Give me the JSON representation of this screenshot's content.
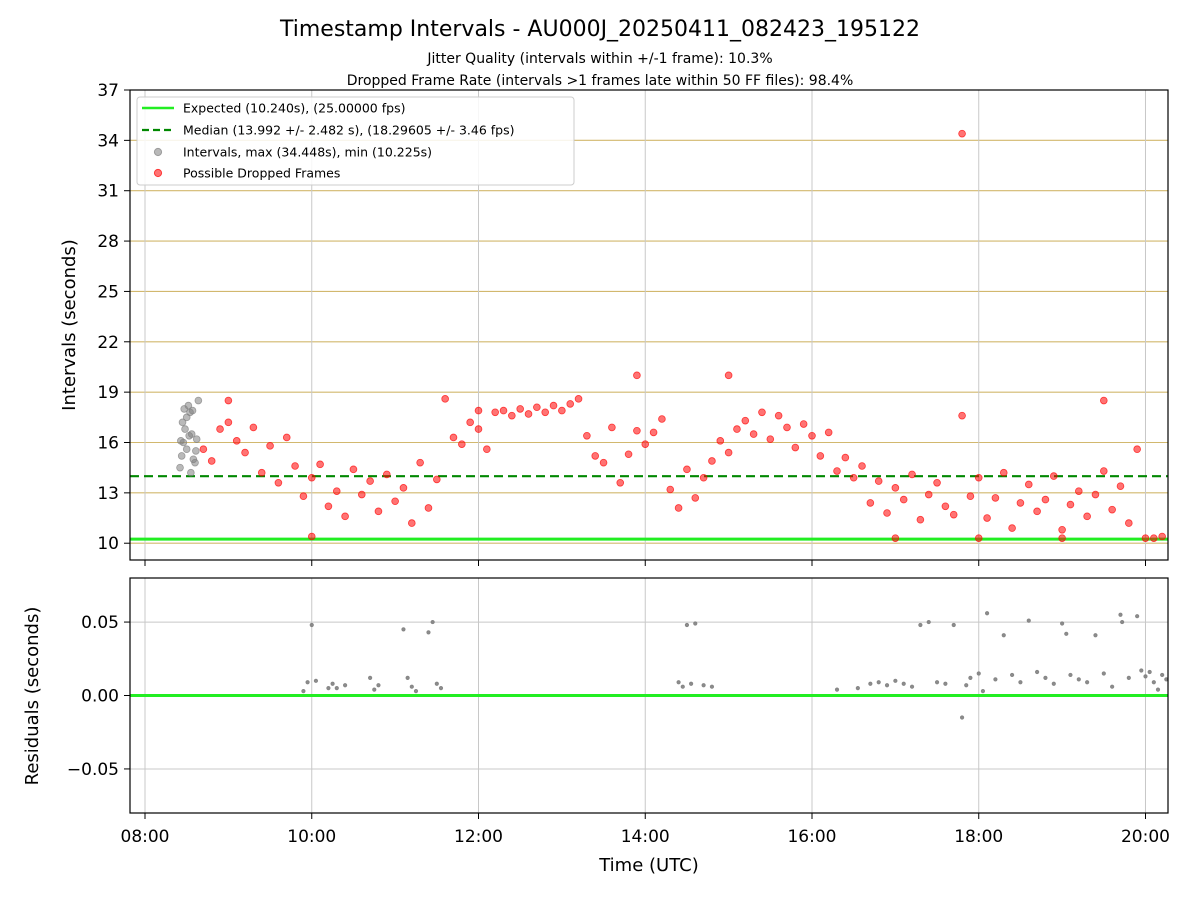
{
  "chart_data": {
    "title": "Timestamp Intervals - AU000J_20250411_082423_195122",
    "subtitle_lines": [
      "Jitter Quality (intervals within +/-1 frame): 10.3%",
      "Dropped Frame Rate (intervals >1 frames late within 50 FF files): 98.4%"
    ],
    "xlabel": "Time (UTC)",
    "x_ticks": [
      "08:00",
      "10:00",
      "12:00",
      "14:00",
      "16:00",
      "18:00",
      "20:00"
    ],
    "x_tick_hours": [
      8,
      10,
      12,
      14,
      16,
      18,
      20
    ],
    "xlim_hours": [
      7.82,
      20.27
    ],
    "colors": {
      "expected": "#22ee22",
      "median": "#008800",
      "intervals": "#808080",
      "dropped": "#ff0000",
      "hgrid_upper": "#d2b86e",
      "grid": "#c8c8c8"
    },
    "panels": [
      {
        "name": "intervals",
        "type": "scatter",
        "ylabel": "Intervals (seconds)",
        "ylim": [
          9.0,
          37.0
        ],
        "y_ticks": [
          "10",
          "13",
          "16",
          "19",
          "22",
          "25",
          "28",
          "31",
          "34",
          "37"
        ],
        "y_tick_values": [
          10,
          13,
          16,
          19,
          22,
          25,
          28,
          31,
          34,
          37
        ],
        "expected_value": 10.24,
        "median_value": 13.992,
        "legend": [
          {
            "label": "Expected (10.240s), (25.00000 fps)",
            "style": "solid-line",
            "color": "#22ee22"
          },
          {
            "label": "Median (13.992 +/- 2.482 s), (18.29605 +/- 3.46 fps)",
            "style": "dashed-line",
            "color": "#008800"
          },
          {
            "label": "Intervals, max (34.448s), min (10.225s)",
            "style": "dot",
            "color": "#808080"
          },
          {
            "label": "Possible Dropped Frames",
            "style": "dot",
            "color": "#ff0000"
          }
        ],
        "series": [
          {
            "name": "Intervals",
            "color": "#808080",
            "points": [
              [
                8.42,
                14.5
              ],
              [
                8.44,
                15.2
              ],
              [
                8.46,
                16.0
              ],
              [
                8.48,
                16.8
              ],
              [
                8.5,
                17.5
              ],
              [
                8.52,
                18.2
              ],
              [
                8.54,
                17.8
              ],
              [
                8.56,
                16.5
              ],
              [
                8.58,
                15.0
              ],
              [
                8.6,
                14.8
              ],
              [
                8.62,
                16.2
              ],
              [
                8.64,
                18.5
              ],
              [
                8.45,
                17.2
              ],
              [
                8.5,
                15.6
              ],
              [
                8.55,
                14.2
              ],
              [
                8.47,
                18.0
              ],
              [
                8.53,
                16.4
              ],
              [
                8.57,
                17.9
              ],
              [
                8.43,
                16.1
              ],
              [
                8.61,
                15.5
              ]
            ]
          },
          {
            "name": "Possible Dropped Frames",
            "color": "#ff0000",
            "points": [
              [
                8.7,
                15.6
              ],
              [
                8.8,
                14.9
              ],
              [
                8.9,
                16.8
              ],
              [
                9.0,
                17.2
              ],
              [
                9.1,
                16.1
              ],
              [
                9.2,
                15.4
              ],
              [
                9.3,
                16.9
              ],
              [
                9.4,
                14.2
              ],
              [
                9.5,
                15.8
              ],
              [
                9.6,
                13.6
              ],
              [
                9.7,
                16.3
              ],
              [
                9.8,
                14.6
              ],
              [
                9.9,
                12.8
              ],
              [
                10.0,
                13.9
              ],
              [
                10.1,
                14.7
              ],
              [
                10.2,
                12.2
              ],
              [
                10.3,
                13.1
              ],
              [
                10.4,
                11.6
              ],
              [
                10.5,
                14.4
              ],
              [
                10.6,
                12.9
              ],
              [
                10.7,
                13.7
              ],
              [
                10.8,
                11.9
              ],
              [
                10.9,
                14.1
              ],
              [
                11.0,
                12.5
              ],
              [
                11.1,
                13.3
              ],
              [
                11.2,
                11.2
              ],
              [
                11.3,
                14.8
              ],
              [
                11.4,
                12.1
              ],
              [
                11.5,
                13.8
              ],
              [
                11.6,
                18.6
              ],
              [
                11.7,
                16.3
              ],
              [
                11.8,
                15.9
              ],
              [
                11.9,
                17.2
              ],
              [
                12.0,
                16.8
              ],
              [
                12.1,
                15.6
              ],
              [
                12.2,
                17.8
              ],
              [
                12.3,
                17.9
              ],
              [
                12.4,
                17.6
              ],
              [
                12.5,
                18.0
              ],
              [
                12.6,
                17.7
              ],
              [
                12.7,
                18.1
              ],
              [
                12.8,
                17.8
              ],
              [
                12.9,
                18.2
              ],
              [
                13.0,
                17.9
              ],
              [
                13.1,
                18.3
              ],
              [
                13.2,
                18.6
              ],
              [
                13.3,
                16.4
              ],
              [
                13.4,
                15.2
              ],
              [
                13.5,
                14.8
              ],
              [
                13.6,
                16.9
              ],
              [
                13.7,
                13.6
              ],
              [
                13.8,
                15.3
              ],
              [
                13.9,
                16.7
              ],
              [
                14.0,
                15.9
              ],
              [
                14.1,
                16.6
              ],
              [
                14.2,
                17.4
              ],
              [
                14.3,
                13.2
              ],
              [
                14.4,
                12.1
              ],
              [
                14.5,
                14.4
              ],
              [
                14.6,
                12.7
              ],
              [
                14.7,
                13.9
              ],
              [
                14.8,
                14.9
              ],
              [
                14.9,
                16.1
              ],
              [
                15.0,
                15.4
              ],
              [
                15.1,
                16.8
              ],
              [
                15.2,
                17.3
              ],
              [
                15.3,
                16.5
              ],
              [
                15.4,
                17.8
              ],
              [
                15.5,
                16.2
              ],
              [
                15.6,
                17.6
              ],
              [
                15.7,
                16.9
              ],
              [
                15.8,
                15.7
              ],
              [
                15.9,
                17.1
              ],
              [
                16.0,
                16.4
              ],
              [
                16.1,
                15.2
              ],
              [
                16.2,
                16.6
              ],
              [
                16.3,
                14.3
              ],
              [
                16.4,
                15.1
              ],
              [
                16.5,
                13.9
              ],
              [
                16.6,
                14.6
              ],
              [
                16.7,
                12.4
              ],
              [
                16.8,
                13.7
              ],
              [
                16.9,
                11.8
              ],
              [
                17.0,
                13.3
              ],
              [
                17.1,
                12.6
              ],
              [
                17.2,
                14.1
              ],
              [
                17.3,
                11.4
              ],
              [
                17.4,
                12.9
              ],
              [
                17.5,
                13.6
              ],
              [
                17.6,
                12.2
              ],
              [
                17.7,
                11.7
              ],
              [
                17.8,
                34.4
              ],
              [
                17.9,
                12.8
              ],
              [
                18.0,
                13.9
              ],
              [
                18.1,
                11.5
              ],
              [
                18.2,
                12.7
              ],
              [
                18.3,
                14.2
              ],
              [
                18.4,
                10.9
              ],
              [
                18.5,
                12.4
              ],
              [
                18.6,
                13.5
              ],
              [
                18.7,
                11.9
              ],
              [
                18.8,
                12.6
              ],
              [
                18.9,
                14.0
              ],
              [
                19.0,
                10.8
              ],
              [
                19.1,
                12.3
              ],
              [
                19.2,
                13.1
              ],
              [
                19.3,
                11.6
              ],
              [
                19.4,
                12.9
              ],
              [
                19.5,
                14.3
              ],
              [
                19.6,
                12.0
              ],
              [
                19.7,
                13.4
              ],
              [
                19.8,
                11.2
              ],
              [
                19.9,
                15.6
              ],
              [
                20.0,
                10.3
              ],
              [
                20.1,
                10.3
              ],
              [
                20.2,
                10.4
              ],
              [
                17.0,
                10.3
              ],
              [
                18.0,
                10.3
              ],
              [
                19.0,
                10.3
              ],
              [
                10.0,
                10.4
              ],
              [
                12.0,
                17.9
              ],
              [
                15.0,
                20.0
              ],
              [
                13.9,
                20.0
              ],
              [
                19.5,
                18.5
              ],
              [
                17.8,
                17.6
              ],
              [
                9.0,
                18.5
              ]
            ]
          }
        ]
      },
      {
        "name": "residuals",
        "type": "scatter",
        "ylabel": "Residuals (seconds)",
        "ylim": [
          -0.08,
          0.08
        ],
        "y_ticks": [
          "0.05",
          "0.00",
          "−0.05"
        ],
        "y_tick_values": [
          0.05,
          0.0,
          -0.05
        ],
        "zero_line_value": 0.0,
        "series": [
          {
            "name": "Residuals",
            "color": "#808080",
            "points": [
              [
                9.9,
                0.003
              ],
              [
                9.95,
                0.009
              ],
              [
                10.0,
                0.048
              ],
              [
                10.05,
                0.01
              ],
              [
                10.2,
                0.005
              ],
              [
                10.25,
                0.008
              ],
              [
                10.3,
                0.005
              ],
              [
                10.4,
                0.007
              ],
              [
                10.7,
                0.012
              ],
              [
                10.75,
                0.004
              ],
              [
                10.8,
                0.007
              ],
              [
                11.1,
                0.045
              ],
              [
                11.15,
                0.012
              ],
              [
                11.2,
                0.006
              ],
              [
                11.25,
                0.003
              ],
              [
                11.4,
                0.043
              ],
              [
                11.45,
                0.05
              ],
              [
                11.5,
                0.008
              ],
              [
                11.55,
                0.005
              ],
              [
                14.4,
                0.009
              ],
              [
                14.45,
                0.006
              ],
              [
                14.5,
                0.048
              ],
              [
                14.55,
                0.008
              ],
              [
                14.6,
                0.049
              ],
              [
                14.7,
                0.007
              ],
              [
                14.8,
                0.006
              ],
              [
                16.3,
                0.004
              ],
              [
                16.55,
                0.005
              ],
              [
                16.7,
                0.008
              ],
              [
                16.8,
                0.009
              ],
              [
                16.9,
                0.007
              ],
              [
                17.0,
                0.01
              ],
              [
                17.1,
                0.008
              ],
              [
                17.2,
                0.006
              ],
              [
                17.3,
                0.048
              ],
              [
                17.4,
                0.05
              ],
              [
                17.5,
                0.009
              ],
              [
                17.6,
                0.008
              ],
              [
                17.7,
                0.048
              ],
              [
                17.8,
                -0.015
              ],
              [
                17.85,
                0.007
              ],
              [
                17.9,
                0.012
              ],
              [
                18.0,
                0.015
              ],
              [
                18.05,
                0.003
              ],
              [
                18.1,
                0.056
              ],
              [
                18.2,
                0.011
              ],
              [
                18.3,
                0.041
              ],
              [
                18.4,
                0.014
              ],
              [
                18.5,
                0.009
              ],
              [
                18.6,
                0.051
              ],
              [
                18.7,
                0.016
              ],
              [
                18.8,
                0.012
              ],
              [
                18.9,
                0.008
              ],
              [
                19.0,
                0.049
              ],
              [
                19.05,
                0.042
              ],
              [
                19.1,
                0.014
              ],
              [
                19.2,
                0.011
              ],
              [
                19.3,
                0.009
              ],
              [
                19.4,
                0.041
              ],
              [
                19.5,
                0.015
              ],
              [
                19.6,
                0.006
              ],
              [
                19.7,
                0.055
              ],
              [
                19.72,
                0.05
              ],
              [
                19.8,
                0.012
              ],
              [
                19.9,
                0.054
              ],
              [
                19.95,
                0.017
              ],
              [
                20.0,
                0.013
              ],
              [
                20.05,
                0.016
              ],
              [
                20.1,
                0.009
              ],
              [
                20.15,
                0.004
              ],
              [
                20.2,
                0.014
              ],
              [
                20.25,
                0.011
              ]
            ]
          }
        ]
      }
    ]
  }
}
